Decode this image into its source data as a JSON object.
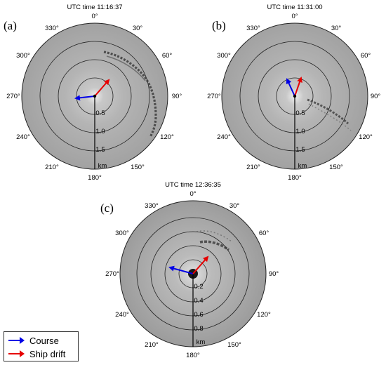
{
  "panels": [
    {
      "letter": "(a)",
      "title": "UTC time 11:16:37",
      "bearing_labels": [
        "0°",
        "30°",
        "60°",
        "90°",
        "120°",
        "150°",
        "180°",
        "210°",
        "240°",
        "270°",
        "300°",
        "330°"
      ],
      "range_labels": [
        "0.5",
        "1.0",
        "1.5"
      ],
      "range_unit": "km",
      "course_deg": 265,
      "drift_deg": 40
    },
    {
      "letter": "(b)",
      "title": "UTC time 11:31:00",
      "bearing_labels": [
        "0°",
        "30°",
        "60°",
        "90°",
        "120°",
        "150°",
        "180°",
        "210°",
        "240°",
        "270°",
        "300°",
        "330°"
      ],
      "range_labels": [
        "0.5",
        "1.0",
        "1.5"
      ],
      "range_unit": "km",
      "course_deg": 340,
      "drift_deg": 20
    },
    {
      "letter": "(c)",
      "title": "UTC time 12:36:35",
      "bearing_labels": [
        "0°",
        "30°",
        "60°",
        "90°",
        "120°",
        "150°",
        "180°",
        "210°",
        "240°",
        "270°",
        "300°",
        "330°"
      ],
      "range_labels": [
        "0.2",
        "0.4",
        "0.6",
        "0.8"
      ],
      "range_unit": "km",
      "course_deg": 285,
      "drift_deg": 40
    }
  ],
  "legend": {
    "course_label": "Course",
    "course_color": "#0000e6",
    "drift_label": "Ship drift",
    "drift_color": "#e60000"
  }
}
